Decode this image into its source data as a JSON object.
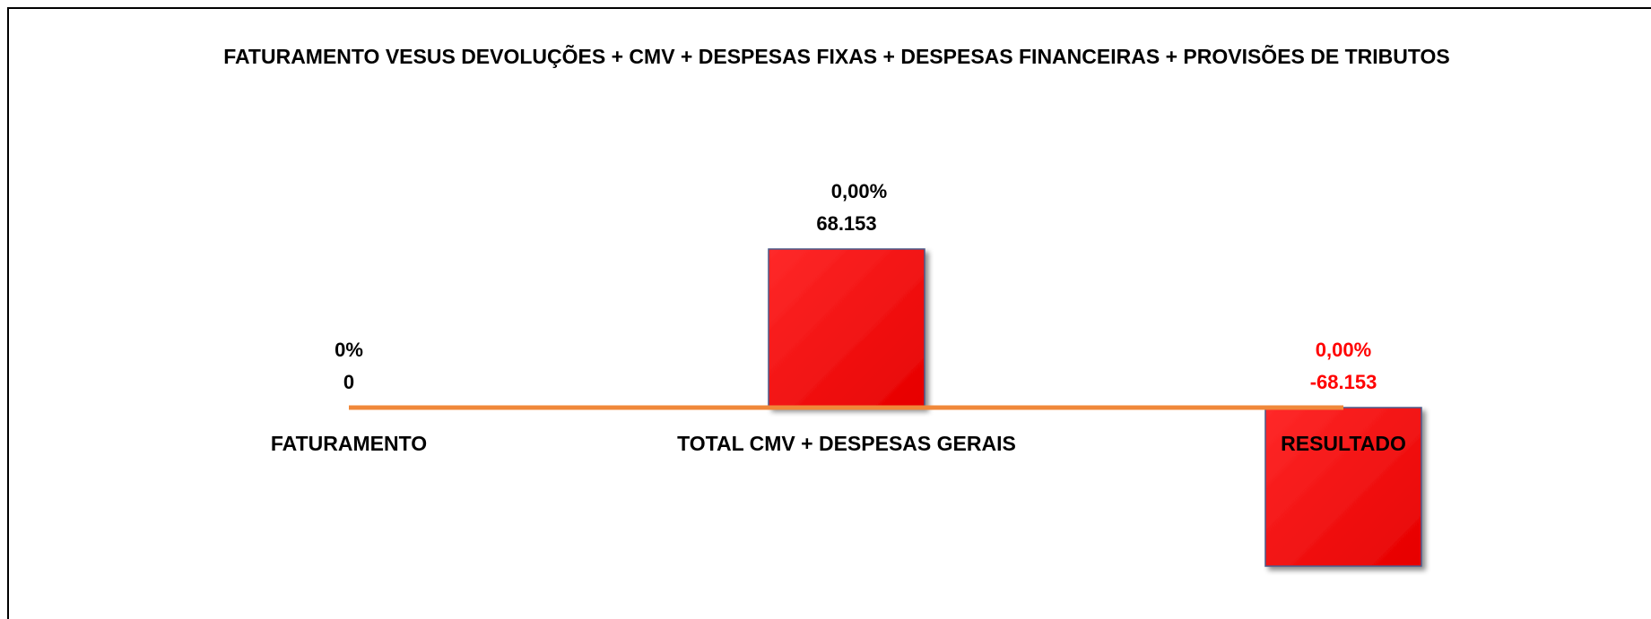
{
  "chart_data": {
    "type": "bar",
    "title": "FATURAMENTO  VESUS DEVOLUÇÕES + CMV + DESPESAS FIXAS + DESPESAS FINANCEIRAS + PROVISÕES DE TRIBUTOS",
    "categories": [
      "FATURAMENTO",
      "TOTAL CMV + DESPESAS GERAIS",
      "RESULTADO"
    ],
    "values": [
      0,
      68153,
      -68153
    ],
    "value_labels": [
      "0",
      "68.153",
      "-68.153"
    ],
    "percent_labels": [
      "0%",
      "0,00%",
      "0,00%"
    ],
    "color": "#ff0000",
    "baseline_color": "#f0883a",
    "negative_label_color": "#ff0000"
  }
}
